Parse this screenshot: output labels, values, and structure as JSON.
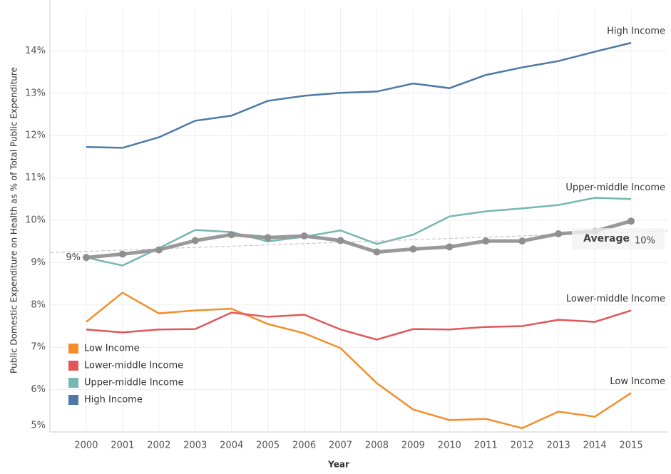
{
  "chart_data": {
    "type": "line",
    "y_label": "Public Domestic Expenditure on Health as % of Total Public Expenditure",
    "x_label": "Year",
    "x": [
      2000,
      2001,
      2002,
      2003,
      2004,
      2005,
      2006,
      2007,
      2008,
      2009,
      2010,
      2011,
      2012,
      2013,
      2014,
      2015
    ],
    "xlim": [
      1999,
      2016
    ],
    "xticks": [
      2000,
      2001,
      2002,
      2003,
      2004,
      2005,
      2006,
      2007,
      2008,
      2009,
      2010,
      2011,
      2012,
      2013,
      2014,
      2015
    ],
    "ylim": [
      5,
      15
    ],
    "yticks": [
      {
        "value": 5,
        "label": "5%"
      },
      {
        "value": 6,
        "label": "6%"
      },
      {
        "value": 7,
        "label": "7%"
      },
      {
        "value": 8,
        "label": "8%"
      },
      {
        "value": 9,
        "label": "9%"
      },
      {
        "value": 10,
        "label": "10%"
      },
      {
        "value": 11,
        "label": "11%"
      },
      {
        "value": 12,
        "label": "12%"
      },
      {
        "value": 13,
        "label": "13%"
      },
      {
        "value": 14,
        "label": "14%"
      }
    ],
    "grid": true,
    "legend": "lower left",
    "series": [
      {
        "name": "Low Income",
        "color": "#f28e2b",
        "values": [
          7.6,
          8.29,
          7.8,
          7.87,
          7.91,
          7.55,
          7.33,
          6.98,
          6.15,
          5.53,
          5.28,
          5.31,
          5.09,
          5.48,
          5.36,
          5.92
        ]
      },
      {
        "name": "Lower-middle Income",
        "color": "#e15759",
        "values": [
          7.42,
          7.35,
          7.42,
          7.43,
          7.82,
          7.72,
          7.77,
          7.42,
          7.18,
          7.43,
          7.42,
          7.48,
          7.5,
          7.65,
          7.6,
          7.87
        ]
      },
      {
        "name": "Upper-middle Income",
        "color": "#76b7b2",
        "values": [
          9.12,
          8.93,
          9.34,
          9.77,
          9.72,
          9.5,
          9.61,
          9.76,
          9.44,
          9.66,
          10.09,
          10.21,
          10.28,
          10.36,
          10.53,
          10.5
        ]
      },
      {
        "name": "High Income",
        "color": "#4e79a7",
        "values": [
          11.73,
          11.71,
          11.96,
          12.35,
          12.47,
          12.82,
          12.94,
          13.01,
          13.04,
          13.23,
          13.12,
          13.43,
          13.61,
          13.76,
          13.98,
          14.19
        ]
      }
    ],
    "average": {
      "name": "Average",
      "color": "#999999",
      "values": [
        9.12,
        9.2,
        9.3,
        9.52,
        9.66,
        9.59,
        9.63,
        9.52,
        9.25,
        9.32,
        9.37,
        9.51,
        9.51,
        9.68,
        9.74,
        9.98
      ],
      "value_labels": [
        "9%",
        null,
        null,
        null,
        null,
        null,
        null,
        null,
        null,
        null,
        null,
        null,
        null,
        null,
        null,
        "10%"
      ]
    }
  }
}
